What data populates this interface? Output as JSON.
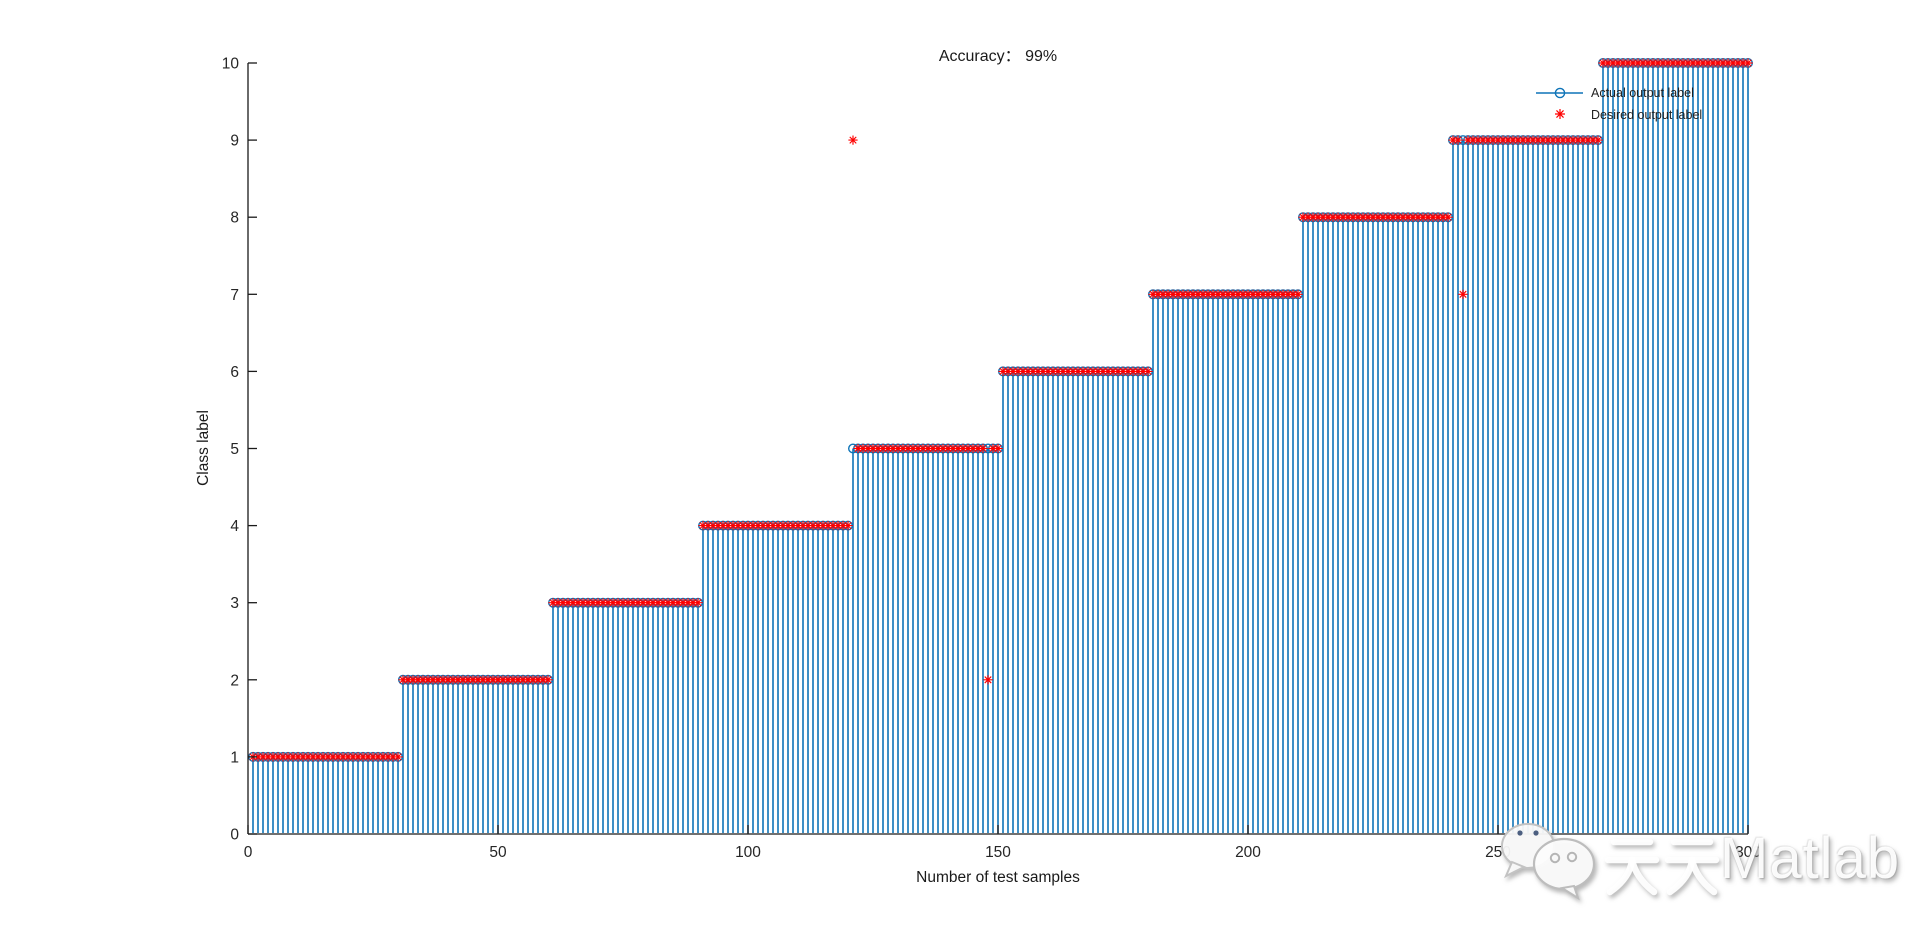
{
  "figure": {
    "background": "#ffffff",
    "title": "Accuracy： 99%",
    "accuracy_value": "99%"
  },
  "chart_data": {
    "type": "line",
    "subtype": "stem-staircase",
    "title": "Accuracy： 99%",
    "xlabel": "Number of test samples",
    "ylabel": "Class label",
    "xlim": [
      0,
      300
    ],
    "ylim": [
      0,
      10
    ],
    "xticks": [
      0,
      50,
      100,
      150,
      200,
      250,
      300
    ],
    "yticks": [
      0,
      1,
      2,
      3,
      4,
      5,
      6,
      7,
      8,
      9,
      10
    ],
    "grid": false,
    "legend_position": "top-right-inside-transparent",
    "n_samples": 300,
    "samples_per_class": 30,
    "classes": [
      1,
      2,
      3,
      4,
      5,
      6,
      7,
      8,
      9,
      10
    ],
    "series": [
      {
        "name": "Actual output label",
        "style": "stem",
        "marker": "open-circle",
        "color": "#0F74B8",
        "values_rule": {
          "type": "staircase",
          "samples_per_class": 30,
          "description": "class = ceil(sample/30), samples 1..300"
        }
      },
      {
        "name": "Desired output label",
        "style": "scatter",
        "marker": "asterisk",
        "color": "#FF0000",
        "values_rule": {
          "type": "staircase_with_outliers",
          "samples_per_class": 30,
          "outliers": [
            {
              "sample": 121,
              "value": 9
            },
            {
              "sample": 148,
              "value": 2
            },
            {
              "sample": 243,
              "value": 7
            }
          ]
        }
      }
    ],
    "annotations": {
      "errors_shown": 3,
      "accuracy_text": "99%"
    }
  },
  "colors": {
    "stem_blue": "#0F74B8",
    "desired_red": "#FF0000",
    "axis": "#1a1a1a",
    "tick_text": "#262626"
  },
  "watermark": {
    "text": "天天Matlab",
    "cjk": "天天",
    "latin": "Matlab",
    "icon": "wechat-icon"
  }
}
